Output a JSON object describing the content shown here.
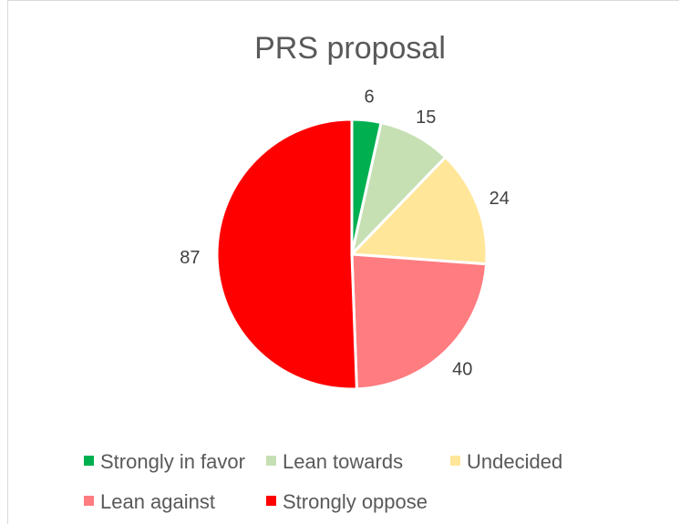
{
  "chart_data": {
    "type": "pie",
    "title": "PRS proposal",
    "categories": [
      "Strongly in favor",
      "Lean towards",
      "Undecided",
      "Lean against",
      "Strongly oppose"
    ],
    "values": [
      6,
      15,
      24,
      40,
      87
    ],
    "colors": [
      "#00b050",
      "#c6e0b4",
      "#ffe699",
      "#ff7c80",
      "#ff0000"
    ],
    "data_labels": [
      "6",
      "15",
      "24",
      "40",
      "87"
    ],
    "legend_position": "bottom",
    "start_angle": "12 o'clock, clockwise"
  }
}
